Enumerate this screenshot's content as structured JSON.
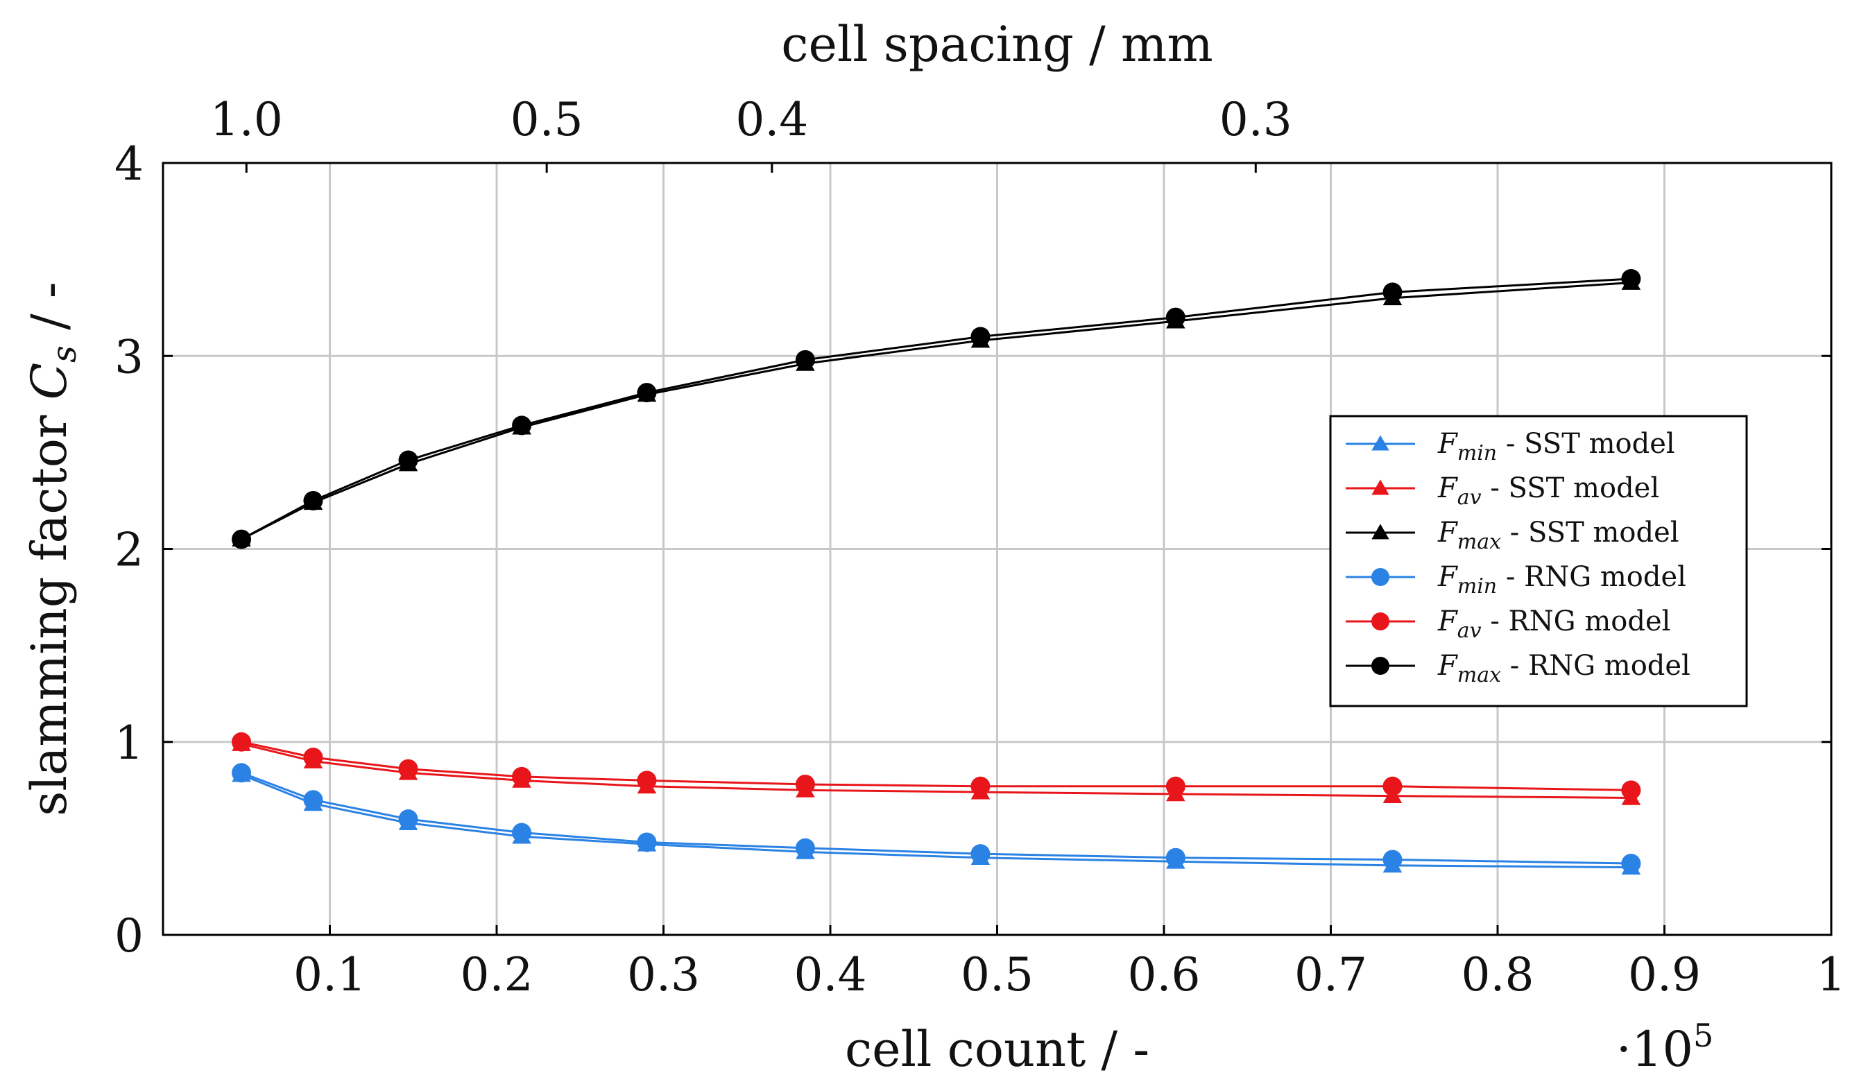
{
  "chart_data": {
    "type": "line",
    "title": "",
    "xlabel": "cell count / -",
    "ylabel": "slamming factor",
    "ylabel_symbol": "C",
    "ylabel_subscript": "s",
    "ylabel_suffix": " / -",
    "x_multiplier_base": "·10",
    "x_multiplier_exp": "5",
    "xlim": [
      0.0,
      1.0
    ],
    "ylim": [
      0,
      4
    ],
    "grid": true,
    "legend_position": "center-right",
    "x_ticks": [
      {
        "value": 0.1,
        "label": "0.1"
      },
      {
        "value": 0.2,
        "label": "0.2"
      },
      {
        "value": 0.3,
        "label": "0.3"
      },
      {
        "value": 0.4,
        "label": "0.4"
      },
      {
        "value": 0.5,
        "label": "0.5"
      },
      {
        "value": 0.6,
        "label": "0.6"
      },
      {
        "value": 0.7,
        "label": "0.7"
      },
      {
        "value": 0.8,
        "label": "0.8"
      },
      {
        "value": 0.9,
        "label": "0.9"
      },
      {
        "value": 1.0,
        "label": "1"
      }
    ],
    "y_ticks": [
      {
        "value": 0,
        "label": "0"
      },
      {
        "value": 1,
        "label": "1"
      },
      {
        "value": 2,
        "label": "2"
      },
      {
        "value": 3,
        "label": "3"
      },
      {
        "value": 4,
        "label": "4"
      }
    ],
    "top_axis": {
      "label": "cell spacing / mm",
      "ticks": [
        {
          "x": 0.05,
          "label": "1.0"
        },
        {
          "x": 0.23,
          "label": "0.5"
        },
        {
          "x": 0.365,
          "label": "0.4"
        },
        {
          "x": 0.655,
          "label": "0.3"
        }
      ]
    },
    "x": [
      0.047,
      0.1,
      0.147,
      0.2,
      0.3,
      0.4,
      0.5,
      0.6,
      0.7,
      0.9
    ],
    "x_points": [
      0.047,
      0.09,
      0.147,
      0.215,
      0.29,
      0.385,
      0.49,
      0.607,
      0.737,
      0.88
    ],
    "series": [
      {
        "name": "F_min - SST model",
        "sym": "F",
        "sub": "min",
        "suffix": " - SST model",
        "color": "#2a82e4",
        "marker": "triangle",
        "values": [
          0.83,
          0.68,
          0.58,
          0.51,
          0.47,
          0.43,
          0.4,
          0.38,
          0.36,
          0.35
        ]
      },
      {
        "name": "F_av - SST model",
        "sym": "F",
        "sub": "av",
        "suffix": " - SST model",
        "color": "#e8161b",
        "marker": "triangle",
        "values": [
          0.99,
          0.9,
          0.84,
          0.8,
          0.77,
          0.75,
          0.74,
          0.73,
          0.72,
          0.71
        ]
      },
      {
        "name": "F_max - SST model",
        "sym": "F",
        "sub": "max",
        "suffix": " - SST model",
        "color": "#000000",
        "marker": "triangle",
        "values": [
          2.05,
          2.24,
          2.44,
          2.63,
          2.8,
          2.96,
          3.08,
          3.18,
          3.3,
          3.38
        ]
      },
      {
        "name": "F_min - RNG model",
        "sym": "F",
        "sub": "min",
        "suffix": " - RNG model",
        "color": "#2a82e4",
        "marker": "circle",
        "values": [
          0.84,
          0.7,
          0.6,
          0.53,
          0.48,
          0.45,
          0.42,
          0.4,
          0.39,
          0.37
        ]
      },
      {
        "name": "F_av - RNG model",
        "sym": "F",
        "sub": "av",
        "suffix": " - RNG model",
        "color": "#e8161b",
        "marker": "circle",
        "values": [
          1.0,
          0.92,
          0.86,
          0.82,
          0.8,
          0.78,
          0.77,
          0.77,
          0.77,
          0.75
        ]
      },
      {
        "name": "F_max - RNG model",
        "sym": "F",
        "sub": "max",
        "suffix": " - RNG model",
        "color": "#000000",
        "marker": "circle",
        "values": [
          2.05,
          2.25,
          2.46,
          2.64,
          2.81,
          2.98,
          3.1,
          3.2,
          3.33,
          3.4
        ]
      }
    ]
  }
}
